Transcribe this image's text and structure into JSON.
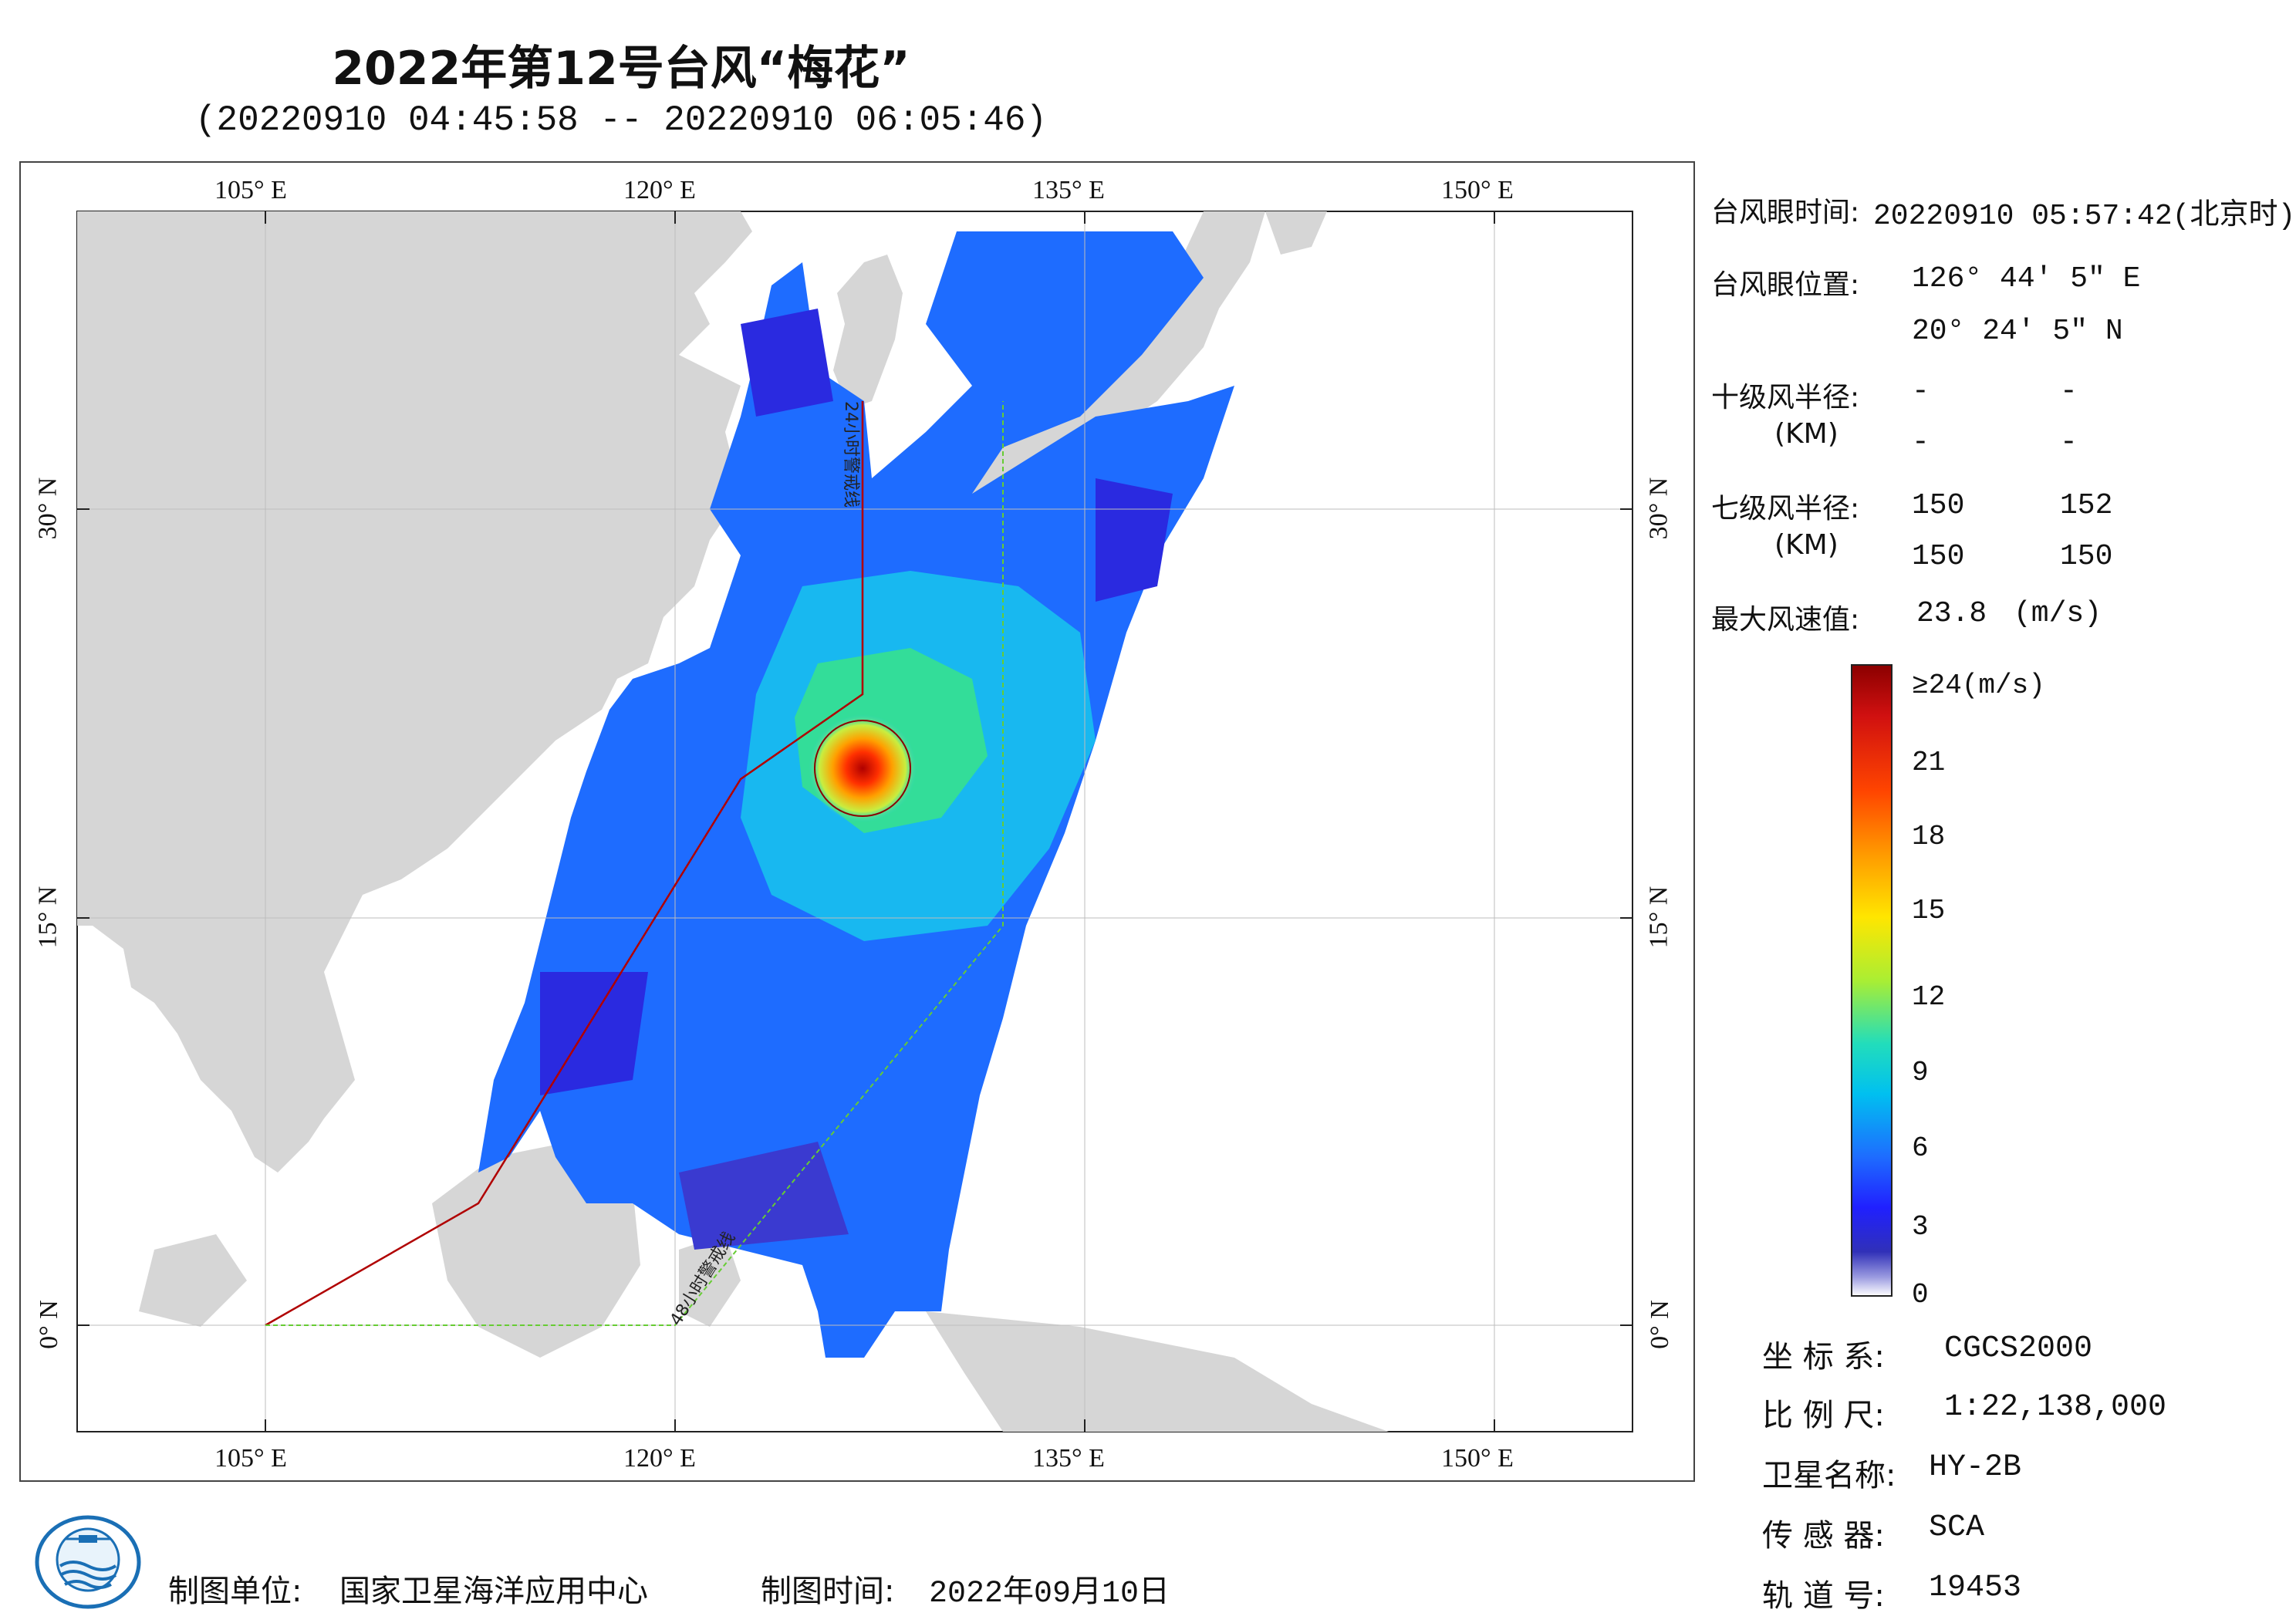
{
  "title": "2022年第12号台风“梅花”",
  "subtitle": "(20220910 04:45:58 -- 20220910 06:05:46)",
  "map": {
    "lon_ticks": [
      "105° E",
      "120° E",
      "135° E",
      "150° E"
    ],
    "lat_ticks": [
      "30° N",
      "15° N",
      "0° N"
    ],
    "track_label_24h": "24小时警戒线",
    "track_label_48h": "48小时警戒线",
    "colors": {
      "land": "#d6d6d6",
      "sea": "#ffffff",
      "warning_24h": "#b00000",
      "warning_48h": "#66cc33"
    }
  },
  "info": {
    "eye_time_label": "台风眼时间:",
    "eye_time_value": "20220910 05:57:42(北京时)",
    "eye_pos_label": "台风眼位置:",
    "eye_lon": "126° 44′ 5″ E",
    "eye_lat": "20° 24′ 5″ N",
    "r10_label": "十级风半径:",
    "r10_unit": "(KM)",
    "r10_values": [
      "-",
      "-",
      "-",
      "-"
    ],
    "r7_label": "七级风半径:",
    "r7_unit": "(KM)",
    "r7_values": [
      "150",
      "152",
      "150",
      "150"
    ],
    "max_wind_label": "最大风速值:",
    "max_wind_value": "23.8",
    "max_wind_unit": "(m/s)"
  },
  "colorbar": {
    "labels": [
      "≥24(m/s)",
      "21",
      "18",
      "15",
      "12",
      "9",
      "6",
      "3",
      "0"
    ],
    "stops": [
      "#8b0000",
      "#e31a1c",
      "#ff6a00",
      "#ffd700",
      "#ccee33",
      "#33dd99",
      "#00ccee",
      "#1e90ff",
      "#1e3cff",
      "#2020d0",
      "#8888dd",
      "#ffffff"
    ]
  },
  "meta": {
    "crs_label": "坐 标 系:",
    "crs_value": "CGCS2000",
    "scale_label": "比 例 尺:",
    "scale_value": "1:22,138,000",
    "satellite_label": "卫星名称:",
    "satellite_value": "HY-2B",
    "sensor_label": "传 感 器:",
    "sensor_value": "SCA",
    "orbit_label": "轨 道 号:",
    "orbit_value": "19453"
  },
  "footer": {
    "org_label": "制图单位:",
    "org_value": "国家卫星海洋应用中心",
    "date_label": "制图时间:",
    "date_value": "2022年09月10日"
  }
}
